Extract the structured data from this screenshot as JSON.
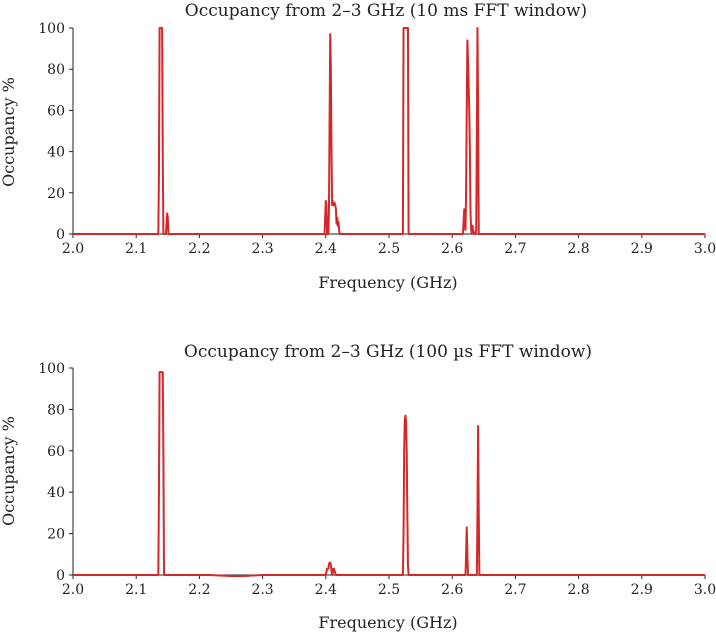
{
  "chart_data": [
    {
      "type": "line",
      "title": "Occupancy from 2–3 GHz (10 ms FFT window)",
      "xlabel": "Frequency (GHz)",
      "ylabel": "Occupancy %",
      "xlim": [
        2.0,
        3.0
      ],
      "ylim": [
        0,
        100
      ],
      "xticks": [
        "2.0",
        "2.1",
        "2.2",
        "2.3",
        "2.4",
        "2.5",
        "2.6",
        "2.7",
        "2.8",
        "2.9",
        "3.0"
      ],
      "yticks": [
        "0",
        "20",
        "40",
        "60",
        "80",
        "100"
      ],
      "grid": false,
      "color": "#d62728",
      "series": [
        {
          "x": [
            2.0,
            2.135,
            2.136,
            2.137,
            2.138,
            2.139,
            2.14,
            2.141,
            2.142,
            2.143,
            2.145,
            2.147,
            2.148,
            2.149,
            2.15,
            2.151,
            2.153,
            2.155,
            2.398,
            2.399,
            2.4,
            2.401,
            2.402,
            2.404,
            2.405,
            2.406,
            2.407,
            2.408,
            2.409,
            2.41,
            2.411,
            2.412,
            2.414,
            2.415,
            2.416,
            2.417,
            2.418,
            2.419,
            2.42,
            2.421,
            2.422,
            2.522,
            2.523,
            2.524,
            2.525,
            2.526,
            2.527,
            2.528,
            2.529,
            2.53,
            2.531,
            2.617,
            2.618,
            2.619,
            2.62,
            2.621,
            2.622,
            2.623,
            2.624,
            2.625,
            2.626,
            2.627,
            2.628,
            2.629,
            2.63,
            2.631,
            2.632,
            2.633,
            2.634,
            2.635,
            2.636,
            2.637,
            2.638,
            2.639,
            2.64,
            2.641,
            2.642,
            2.643,
            2.644,
            2.645,
            3.0
          ],
          "y": [
            0,
            0,
            30,
            100,
            100,
            100,
            100,
            100,
            40,
            0,
            0,
            0,
            5,
            10,
            8,
            0,
            0,
            0,
            0,
            8,
            16,
            14,
            0,
            0,
            12,
            55,
            97,
            80,
            40,
            14,
            16,
            14,
            15,
            14,
            12,
            5,
            8,
            4,
            6,
            2,
            0,
            0,
            100,
            100,
            100,
            100,
            100,
            100,
            100,
            100,
            0,
            0,
            6,
            12,
            6,
            2,
            20,
            60,
            94,
            85,
            72,
            60,
            40,
            10,
            2,
            0,
            4,
            2,
            1,
            0,
            0,
            0,
            2,
            50,
            100,
            60,
            0,
            0,
            0,
            0,
            0
          ]
        }
      ]
    },
    {
      "type": "line",
      "title": "Occupancy from 2–3 GHz (100 µs FFT window)",
      "xlabel": "Frequency (GHz)",
      "ylabel": "Occupancy %",
      "xlim": [
        2.0,
        3.0
      ],
      "ylim": [
        0,
        100
      ],
      "xticks": [
        "2.0",
        "2.1",
        "2.2",
        "2.3",
        "2.4",
        "2.5",
        "2.6",
        "2.7",
        "2.8",
        "2.9",
        "3.0"
      ],
      "yticks": [
        "0",
        "20",
        "40",
        "60",
        "80",
        "100"
      ],
      "grid": false,
      "color": "#d62728",
      "series": [
        {
          "x": [
            2.0,
            2.135,
            2.136,
            2.137,
            2.138,
            2.139,
            2.14,
            2.141,
            2.142,
            2.143,
            2.144,
            2.145,
            2.215,
            2.25,
            2.27,
            2.3,
            2.4,
            2.402,
            2.404,
            2.405,
            2.406,
            2.407,
            2.408,
            2.409,
            2.41,
            2.411,
            2.412,
            2.413,
            2.414,
            2.415,
            2.416,
            2.418,
            2.522,
            2.523,
            2.524,
            2.525,
            2.526,
            2.527,
            2.528,
            2.529,
            2.53,
            2.531,
            2.621,
            2.622,
            2.623,
            2.624,
            2.625,
            2.639,
            2.64,
            2.641,
            2.642,
            2.643,
            3.0
          ],
          "y": [
            0,
            0,
            40,
            98,
            98,
            98,
            98,
            98,
            98,
            60,
            0,
            0,
            0,
            -0.5,
            -0.5,
            0,
            0,
            3,
            3,
            5,
            6,
            6,
            5,
            2,
            0,
            1,
            3,
            3,
            2,
            1,
            0,
            0,
            0,
            20,
            60,
            75,
            77,
            74,
            60,
            30,
            5,
            0,
            0,
            10,
            23,
            10,
            0,
            0,
            30,
            72,
            30,
            0,
            0
          ]
        }
      ]
    }
  ]
}
